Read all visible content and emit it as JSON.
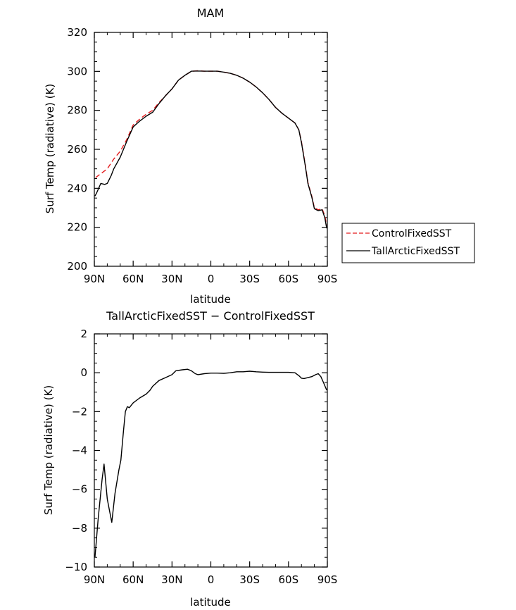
{
  "chart_data": [
    {
      "type": "line",
      "title": "MAM",
      "xlabel": "latitude",
      "ylabel": "Surf Temp (radiative) (K)",
      "xlim": [
        90,
        -90
      ],
      "ylim": [
        200,
        320
      ],
      "x_ticks": [
        90,
        60,
        30,
        0,
        -30,
        -60,
        -90
      ],
      "x_tick_labels": [
        "90N",
        "60N",
        "30N",
        "0",
        "30S",
        "60S",
        "90S"
      ],
      "y_ticks": [
        200,
        220,
        240,
        260,
        280,
        300,
        320
      ],
      "y_tick_labels": [
        "200",
        "220",
        "240",
        "260",
        "280",
        "300",
        "320"
      ],
      "grid": false,
      "legend_position": "right",
      "series": [
        {
          "name": "ControlFixedSST",
          "color": "#e41a1c",
          "dash": "dashed",
          "points": [
            [
              89,
              245.5
            ],
            [
              85,
              247.5
            ],
            [
              80,
              250
            ],
            [
              75,
              255
            ],
            [
              70,
              259
            ],
            [
              65,
              265
            ],
            [
              60,
              272.5
            ],
            [
              55,
              275.5
            ],
            [
              50,
              278
            ],
            [
              45,
              280
            ],
            [
              40,
              284
            ],
            [
              35,
              287.5
            ],
            [
              30,
              291
            ],
            [
              25,
              295.5
            ],
            [
              20,
              298
            ],
            [
              15,
              300
            ],
            [
              10,
              300.3
            ],
            [
              5,
              300.1
            ],
            [
              0,
              300.1
            ],
            [
              -5,
              300.1
            ],
            [
              -10,
              299.6
            ],
            [
              -15,
              299
            ],
            [
              -20,
              298
            ],
            [
              -25,
              296.5
            ],
            [
              -30,
              294.5
            ],
            [
              -35,
              292
            ],
            [
              -40,
              289
            ],
            [
              -45,
              285.5
            ],
            [
              -50,
              281.5
            ],
            [
              -55,
              278.5
            ],
            [
              -60,
              276
            ],
            [
              -65,
              273.5
            ],
            [
              -68,
              270
            ],
            [
              -70,
              264
            ],
            [
              -73,
              252
            ],
            [
              -75,
              243
            ],
            [
              -78,
              236
            ],
            [
              -80,
              230
            ],
            [
              -83,
              229
            ],
            [
              -86,
              229.5
            ],
            [
              -88,
              226
            ],
            [
              -89.5,
              221
            ]
          ]
        },
        {
          "name": "TallArcticFixedSST",
          "color": "#000000",
          "dash": "solid",
          "points": [
            [
              89.5,
              236
            ],
            [
              88,
              238
            ],
            [
              85,
              242.5
            ],
            [
              82,
              242
            ],
            [
              80,
              242.5
            ],
            [
              77,
              246.5
            ],
            [
              75,
              250
            ],
            [
              70,
              256
            ],
            [
              65,
              264
            ],
            [
              60,
              271.5
            ],
            [
              55,
              274.5
            ],
            [
              50,
              277
            ],
            [
              45,
              279
            ],
            [
              40,
              283.5
            ],
            [
              35,
              287.5
            ],
            [
              30,
              291
            ],
            [
              25,
              295.5
            ],
            [
              20,
              298
            ],
            [
              15,
              300.1
            ],
            [
              10,
              300.2
            ],
            [
              5,
              300.1
            ],
            [
              0,
              300.1
            ],
            [
              -5,
              300.1
            ],
            [
              -10,
              299.6
            ],
            [
              -15,
              299
            ],
            [
              -20,
              298
            ],
            [
              -25,
              296.5
            ],
            [
              -30,
              294.5
            ],
            [
              -35,
              292
            ],
            [
              -40,
              289
            ],
            [
              -45,
              285.5
            ],
            [
              -50,
              281.5
            ],
            [
              -55,
              278.5
            ],
            [
              -60,
              276
            ],
            [
              -65,
              273.5
            ],
            [
              -68,
              270
            ],
            [
              -70,
              263.5
            ],
            [
              -73,
              251.5
            ],
            [
              -75,
              242.5
            ],
            [
              -78,
              235.5
            ],
            [
              -80,
              229.5
            ],
            [
              -83,
              228.5
            ],
            [
              -86,
              229
            ],
            [
              -88,
              225
            ],
            [
              -89.5,
              219.5
            ]
          ]
        }
      ]
    },
    {
      "type": "line",
      "title": "TallArcticFixedSST − ControlFixedSST",
      "xlabel": "latitude",
      "ylabel": "Surf Temp (radiative) (K)",
      "xlim": [
        90,
        -90
      ],
      "ylim": [
        -10,
        2
      ],
      "x_ticks": [
        90,
        60,
        30,
        0,
        -30,
        -60,
        -90
      ],
      "x_tick_labels": [
        "90N",
        "60N",
        "30N",
        "0",
        "30S",
        "60S",
        "90S"
      ],
      "y_ticks": [
        -10,
        -8,
        -6,
        -4,
        -2,
        0,
        2
      ],
      "y_tick_labels": [
        "−10",
        "−8",
        "−6",
        "−4",
        "−2",
        "0",
        "2"
      ],
      "grid": false,
      "series": [
        {
          "color": "#000000",
          "dash": "solid",
          "points": [
            [
              89.5,
              -9.5
            ],
            [
              87,
              -7.5
            ],
            [
              84,
              -5.5
            ],
            [
              82.5,
              -4.7
            ],
            [
              80,
              -6.5
            ],
            [
              78,
              -7.2
            ],
            [
              76.5,
              -7.7
            ],
            [
              74,
              -6.2
            ],
            [
              71,
              -5
            ],
            [
              69.5,
              -4.5
            ],
            [
              67.5,
              -3
            ],
            [
              66,
              -2
            ],
            [
              64.5,
              -1.75
            ],
            [
              63,
              -1.8
            ],
            [
              60,
              -1.55
            ],
            [
              55,
              -1.3
            ],
            [
              50,
              -1.1
            ],
            [
              47,
              -0.9
            ],
            [
              45,
              -0.7
            ],
            [
              40,
              -0.4
            ],
            [
              35,
              -0.25
            ],
            [
              30,
              -0.1
            ],
            [
              27,
              0.1
            ],
            [
              22,
              0.15
            ],
            [
              18,
              0.18
            ],
            [
              15,
              0.1
            ],
            [
              12,
              -0.05
            ],
            [
              10,
              -0.1
            ],
            [
              5,
              -0.05
            ],
            [
              0,
              -0.02
            ],
            [
              -5,
              -0.02
            ],
            [
              -10,
              -0.03
            ],
            [
              -15,
              0
            ],
            [
              -20,
              0.05
            ],
            [
              -25,
              0.05
            ],
            [
              -30,
              0.08
            ],
            [
              -35,
              0.05
            ],
            [
              -40,
              0.03
            ],
            [
              -45,
              0.02
            ],
            [
              -50,
              0.02
            ],
            [
              -55,
              0.02
            ],
            [
              -60,
              0.02
            ],
            [
              -65,
              0
            ],
            [
              -68,
              -0.15
            ],
            [
              -70,
              -0.28
            ],
            [
              -72,
              -0.3
            ],
            [
              -75,
              -0.25
            ],
            [
              -78,
              -0.2
            ],
            [
              -81,
              -0.1
            ],
            [
              -83,
              -0.05
            ],
            [
              -85,
              -0.2
            ],
            [
              -87,
              -0.5
            ],
            [
              -89.5,
              -0.9
            ]
          ]
        }
      ]
    }
  ]
}
